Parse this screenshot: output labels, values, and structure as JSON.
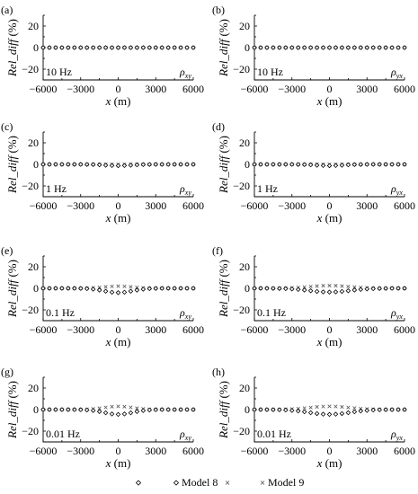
{
  "chart_data": {
    "type": "scatter",
    "panel_count": 8,
    "x": [
      -6000,
      -5500,
      -5000,
      -4500,
      -4000,
      -3500,
      -3000,
      -2500,
      -2000,
      -1500,
      -1000,
      -500,
      0,
      500,
      1000,
      1500,
      2000,
      2500,
      3000,
      3500,
      4000,
      4500,
      5000,
      5500,
      6000
    ],
    "xlabel_italic": "x",
    "xlabel_unit": " (m)",
    "ylabel_italic": "Rel_diff",
    "ylabel_unit": " (%)",
    "xlim": [
      -6000,
      6000
    ],
    "ylim": [
      -30,
      30
    ],
    "xticks": [
      -6000,
      -3000,
      0,
      3000,
      6000
    ],
    "xtick_labels": [
      "−6000",
      "−3000",
      "0",
      "3000",
      "6000"
    ],
    "yticks": [
      20,
      0,
      -20
    ],
    "ytick_labels": [
      "20",
      "0",
      "−20"
    ],
    "legend": [
      {
        "name": "Model 8",
        "marker": "diamond"
      },
      {
        "name": "Model 9",
        "marker": "cross"
      }
    ],
    "panels": [
      {
        "label": "(a)",
        "freq": "10 Hz",
        "rho_sub": "xy",
        "amp8": 0.0,
        "amp9": 0.0,
        "width": 1500
      },
      {
        "label": "(b)",
        "freq": "10 Hz",
        "rho_sub": "yx",
        "amp8": 0.0,
        "amp9": 0.0,
        "width": 1500
      },
      {
        "label": "(c)",
        "freq": "1 Hz",
        "rho_sub": "xy",
        "amp8": -1.2,
        "amp9": 0.0,
        "width": 1500
      },
      {
        "label": "(d)",
        "freq": "1 Hz",
        "rho_sub": "yx",
        "amp8": -1.2,
        "amp9": 0.0,
        "width": 1500
      },
      {
        "label": "(e)",
        "freq": "0.1 Hz",
        "rho_sub": "xy",
        "amp8": -4.0,
        "amp9": 2.0,
        "width": 1600
      },
      {
        "label": "(f)",
        "freq": "0.1 Hz",
        "rho_sub": "yx",
        "amp8": -3.5,
        "amp9": 2.5,
        "width": 2300
      },
      {
        "label": "(g)",
        "freq": "0.01 Hz",
        "rho_sub": "xy",
        "amp8": -4.5,
        "amp9": 3.0,
        "width": 1600
      },
      {
        "label": "(h)",
        "freq": "0.01 Hz",
        "rho_sub": "yx",
        "amp8": -4.5,
        "amp9": 3.0,
        "width": 2300
      }
    ]
  }
}
